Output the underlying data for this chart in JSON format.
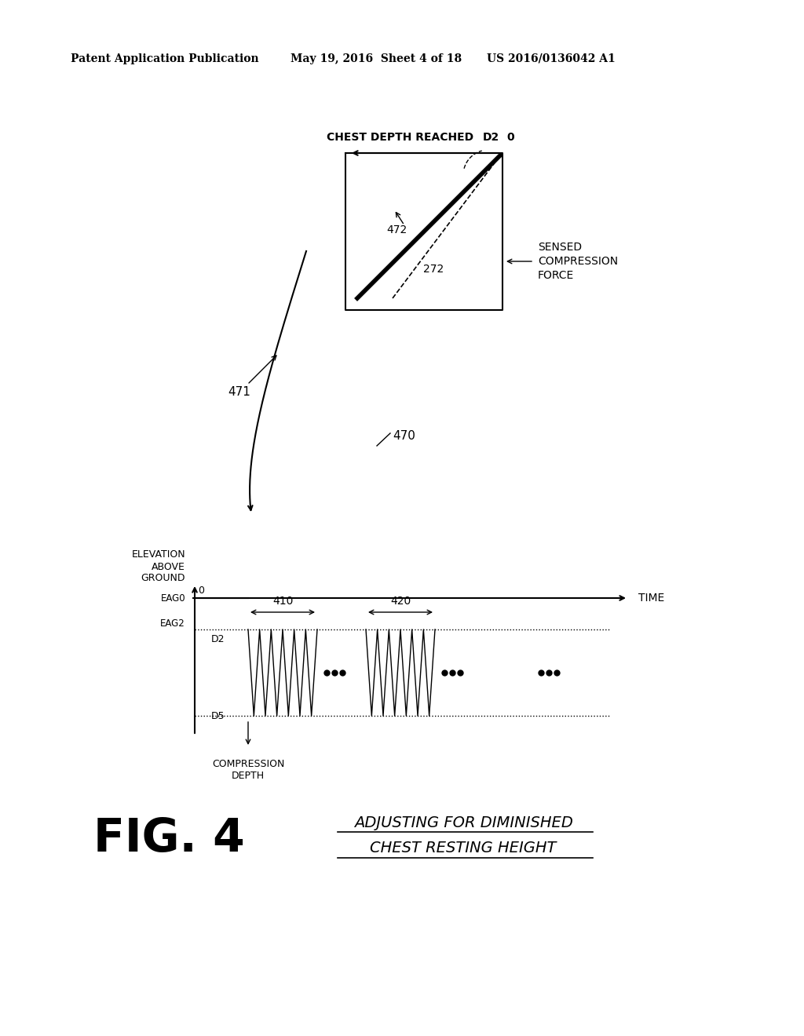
{
  "header_left": "Patent Application Publication",
  "header_mid": "May 19, 2016  Sheet 4 of 18",
  "header_right": "US 2016/0136042 A1",
  "fig_label": "FIG. 4",
  "fig_caption_line1": "ADJUSTING FOR DIMINISHED",
  "fig_caption_line2": "CHEST RESTING HEIGHT",
  "upper_box_label_top": "CHEST DEPTH REACHED",
  "upper_box_label_d2": "D2",
  "upper_box_label_0": "0",
  "label_472": "472",
  "label_272": "272",
  "label_471": "471",
  "label_sensed_line1": "SENSED",
  "label_sensed_line2": "COMPRESSION",
  "label_sensed_line3": "FORCE",
  "label_470": "470",
  "label_410": "410",
  "label_420": "420",
  "label_eag0": "EAG0",
  "label_eag2": "EAG2",
  "label_d2": "D2",
  "label_d5": "D5",
  "label_time": "TIME",
  "label_0": "0",
  "label_elevation_line1": "ELEVATION",
  "label_elevation_line2": "ABOVE",
  "label_elevation_line3": "GROUND",
  "label_compression_line1": "COMPRESSION",
  "label_compression_line2": "DEPTH",
  "bg_color": "#ffffff",
  "line_color": "#000000"
}
